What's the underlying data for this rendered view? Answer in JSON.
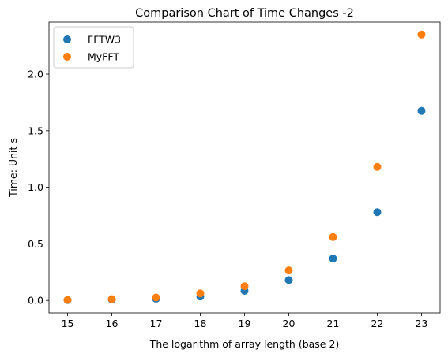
{
  "chart_data": {
    "type": "scatter",
    "title": "Comparison Chart of Time Changes -2",
    "xlabel": "The logarithm of array length (base 2)",
    "ylabel": "Time: Unit s",
    "x": [
      15,
      16,
      17,
      18,
      19,
      20,
      21,
      22,
      23
    ],
    "xlim": [
      14.58,
      23.42
    ],
    "ylim": [
      -0.11,
      2.46
    ],
    "xticks": [
      "15",
      "16",
      "17",
      "18",
      "19",
      "20",
      "21",
      "22",
      "23"
    ],
    "xtick_values": [
      15,
      16,
      17,
      18,
      19,
      20,
      21,
      22,
      23
    ],
    "yticks": [
      "0.0",
      "0.5",
      "1.0",
      "1.5",
      "2.0"
    ],
    "ytick_values": [
      0.0,
      0.5,
      1.0,
      1.5,
      2.0
    ],
    "grid": false,
    "legend_position": "top-left",
    "series": [
      {
        "name": "FFTW3",
        "color": "#1f77b4",
        "values": [
          0.003,
          0.008,
          0.015,
          0.035,
          0.085,
          0.18,
          0.37,
          0.78,
          1.675
        ]
      },
      {
        "name": "MyFFT",
        "color": "#ff7f0e",
        "values": [
          0.004,
          0.012,
          0.026,
          0.062,
          0.125,
          0.265,
          0.56,
          1.18,
          2.35
        ]
      }
    ]
  }
}
